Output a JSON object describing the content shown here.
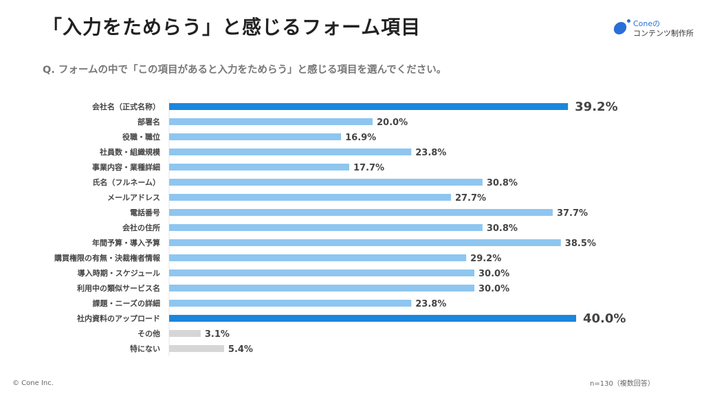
{
  "title": "「入力をためらう」と感じるフォーム項目",
  "question": "Q. フォームの中で「この項目があると入力をためらう」と感じる項目を選んでください。",
  "logo": {
    "line1": "Coneの",
    "line2": "コンテンツ制作所"
  },
  "footer": {
    "copyright": "© Cone Inc.",
    "note": "n=130（複数回答）"
  },
  "colors": {
    "highlight": "#1a86dc",
    "normal": "#8ec6f0",
    "other": "#d6d6d6"
  },
  "chart_data": {
    "type": "bar",
    "orientation": "horizontal",
    "unit": "%",
    "xlim": [
      0,
      40
    ],
    "grid": false,
    "categories": [
      "会社名（正式名称）",
      "部署名",
      "役職・職位",
      "社員数・組織規模",
      "事業内容・業種詳細",
      "氏名（フルネーム）",
      "メールアドレス",
      "電話番号",
      "会社の住所",
      "年間予算・導入予算",
      "購買権限の有無・決裁権者情報",
      "導入時期・スケジュール",
      "利用中の類似サービス名",
      "課題・ニーズの詳細",
      "社内資料のアップロード",
      "その他",
      "特にない"
    ],
    "values": [
      39.2,
      20.0,
      16.9,
      23.8,
      17.7,
      30.8,
      27.7,
      37.7,
      30.8,
      38.5,
      29.2,
      30.0,
      30.0,
      23.8,
      40.0,
      3.1,
      5.4
    ],
    "value_labels": [
      "39.2%",
      "20.0%",
      "16.9%",
      "23.8%",
      "17.7%",
      "30.8%",
      "27.7%",
      "37.7%",
      "30.8%",
      "38.5%",
      "29.2%",
      "30.0%",
      "30.0%",
      "23.8%",
      "40.0%",
      "3.1%",
      "5.4%"
    ],
    "highlighted": [
      0,
      14
    ],
    "other": [
      15,
      16
    ]
  }
}
